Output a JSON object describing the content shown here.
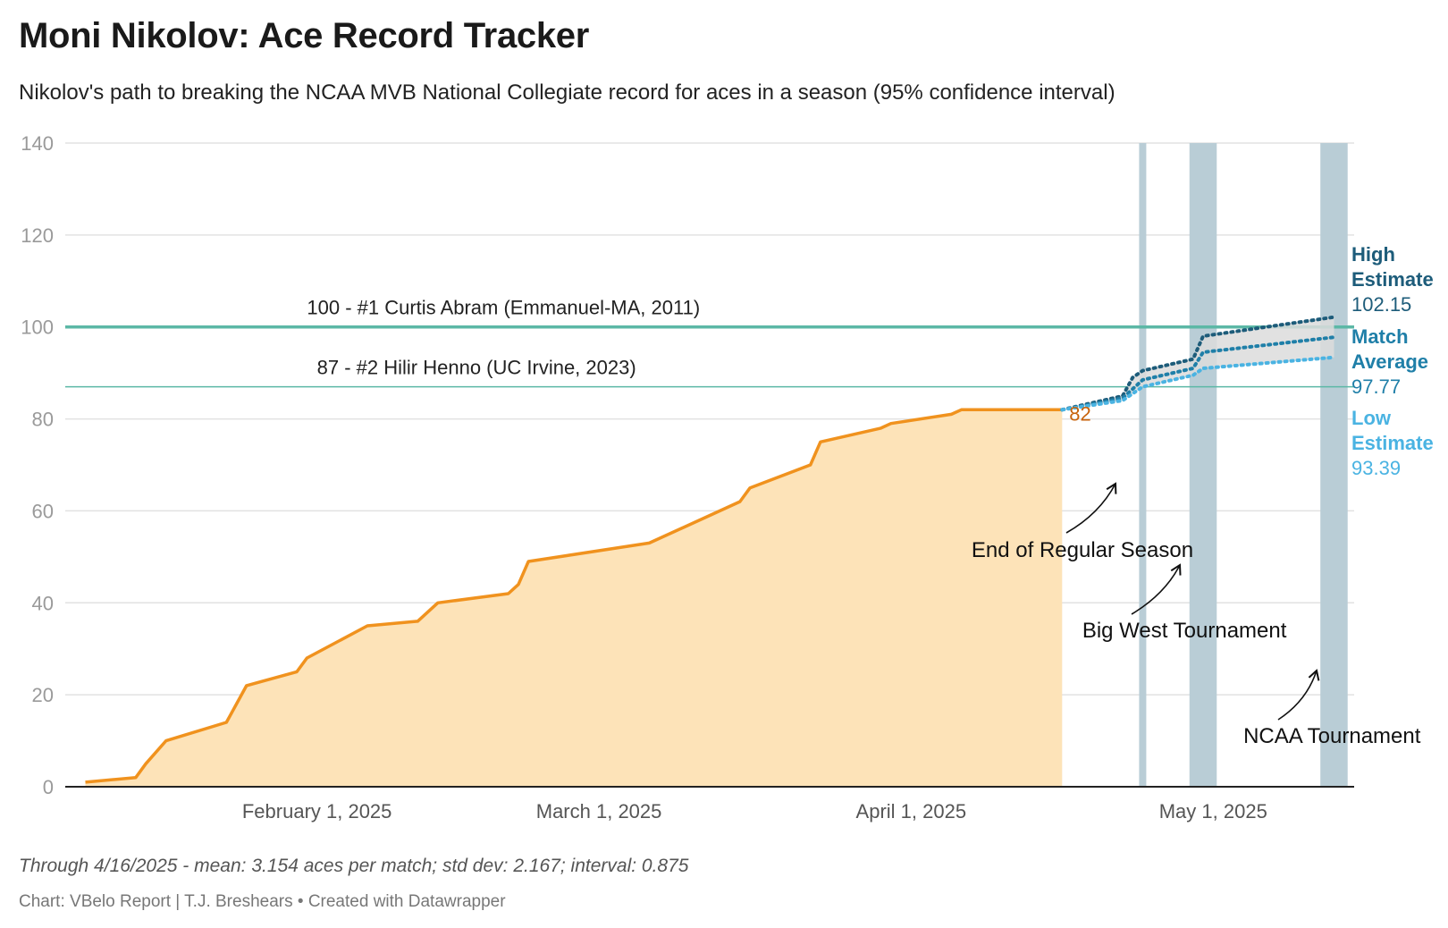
{
  "header": {
    "title": "Moni Nikolov: Ace Record Tracker",
    "subtitle": "Nikolov's path to breaking the NCAA MVB National Collegiate record for aces in a season (95% confidence interval)"
  },
  "footer": {
    "notes": "Through 4/16/2025 - mean: 3.154 aces per match; std dev: 2.167; interval: 0.875",
    "source": "Chart: VBelo Report | T.J. Breshears • Created with Datawrapper"
  },
  "colors": {
    "actual_line": "#f0921e",
    "actual_fill": "#fde3b8",
    "actual_label": "#c8620a",
    "high": "#1d5c7a",
    "avg": "#1f7fa8",
    "low": "#4ab3e2",
    "band": "#dcdcdc",
    "record_line": "#5cb8a6",
    "tournament_bar": "#b9cdd6",
    "grid": "#e2e2e2",
    "tick_text": "#9a9a9a"
  },
  "chart_data": {
    "type": "area",
    "title": "Moni Nikolov: Ace Record Tracker",
    "x_type": "date",
    "xlim": [
      "2025-01-07",
      "2025-05-15"
    ],
    "ylim": [
      0,
      140
    ],
    "y_ticks": [
      0,
      20,
      40,
      60,
      80,
      100,
      120,
      140
    ],
    "x_ticks": [
      {
        "date": "2025-02-01",
        "label": "February 1, 2025"
      },
      {
        "date": "2025-03-01",
        "label": "March 1, 2025"
      },
      {
        "date": "2025-04-01",
        "label": "April 1, 2025"
      },
      {
        "date": "2025-05-01",
        "label": "May 1, 2025"
      }
    ],
    "grid": true,
    "series": [
      {
        "key": "actual",
        "points": [
          [
            "2025-01-09",
            1
          ],
          [
            "2025-01-14",
            2
          ],
          [
            "2025-01-15",
            5
          ],
          [
            "2025-01-17",
            10
          ],
          [
            "2025-01-23",
            14
          ],
          [
            "2025-01-25",
            22
          ],
          [
            "2025-01-30",
            25
          ],
          [
            "2025-01-31",
            28
          ],
          [
            "2025-02-06",
            35
          ],
          [
            "2025-02-11",
            36
          ],
          [
            "2025-02-13",
            40
          ],
          [
            "2025-02-20",
            42
          ],
          [
            "2025-02-21",
            44
          ],
          [
            "2025-02-22",
            49
          ],
          [
            "2025-03-06",
            53
          ],
          [
            "2025-03-15",
            62
          ],
          [
            "2025-03-16",
            65
          ],
          [
            "2025-03-22",
            70
          ],
          [
            "2025-03-23",
            75
          ],
          [
            "2025-03-29",
            78
          ],
          [
            "2025-03-30",
            79
          ],
          [
            "2025-04-05",
            81
          ],
          [
            "2025-04-06",
            82
          ],
          [
            "2025-04-16",
            82
          ]
        ],
        "end_label": "82"
      },
      {
        "key": "high",
        "name": "High Estimate",
        "points": [
          [
            "2025-04-16",
            82
          ],
          [
            "2025-04-22",
            85
          ],
          [
            "2025-04-23",
            89
          ],
          [
            "2025-04-24",
            90.5
          ],
          [
            "2025-04-29",
            93
          ],
          [
            "2025-04-30",
            98
          ],
          [
            "2025-05-13",
            102.15
          ]
        ],
        "end_value": "102.15"
      },
      {
        "key": "avg",
        "name": "Match Average",
        "points": [
          [
            "2025-04-16",
            82
          ],
          [
            "2025-04-22",
            84.5
          ],
          [
            "2025-04-24",
            88.5
          ],
          [
            "2025-04-29",
            91
          ],
          [
            "2025-04-30",
            94.5
          ],
          [
            "2025-05-13",
            97.77
          ]
        ],
        "end_value": "97.77"
      },
      {
        "key": "low",
        "name": "Low Estimate",
        "points": [
          [
            "2025-04-16",
            82
          ],
          [
            "2025-04-22",
            84
          ],
          [
            "2025-04-24",
            87
          ],
          [
            "2025-04-29",
            89.5
          ],
          [
            "2025-04-30",
            91
          ],
          [
            "2025-05-13",
            93.39
          ]
        ],
        "end_value": "93.39"
      }
    ],
    "legend_labels": [
      {
        "key": "high",
        "line1": "High",
        "line2": "Estimate"
      },
      {
        "key": "avg",
        "line1": "Match",
        "line2": "Average"
      },
      {
        "key": "low",
        "line1": "Low",
        "line2": "Estimate"
      }
    ],
    "reference_lines": [
      {
        "value": 100,
        "label": "100 - #1 Curtis Abram (Emmanuel-MA, 2011)",
        "label_at": "2025-01-31"
      },
      {
        "value": 87,
        "label": "87 - #2 Hilir Henno (UC Irvine, 2023)",
        "label_at": "2025-02-01"
      }
    ],
    "shaded_periods": [
      {
        "start": "2025-04-24",
        "end": "2025-04-24"
      },
      {
        "start": "2025-04-29",
        "end": "2025-05-01"
      },
      {
        "start": "2025-05-12",
        "end": "2025-05-14"
      }
    ],
    "annotations": [
      {
        "text": "End of Regular Season",
        "at": [
          "2025-04-07",
          50
        ]
      },
      {
        "text": "Big West Tournament",
        "at": [
          "2025-04-18",
          32.5
        ]
      },
      {
        "text": "NCAA Tournament",
        "at": [
          "2025-05-04",
          9.5
        ]
      }
    ]
  }
}
